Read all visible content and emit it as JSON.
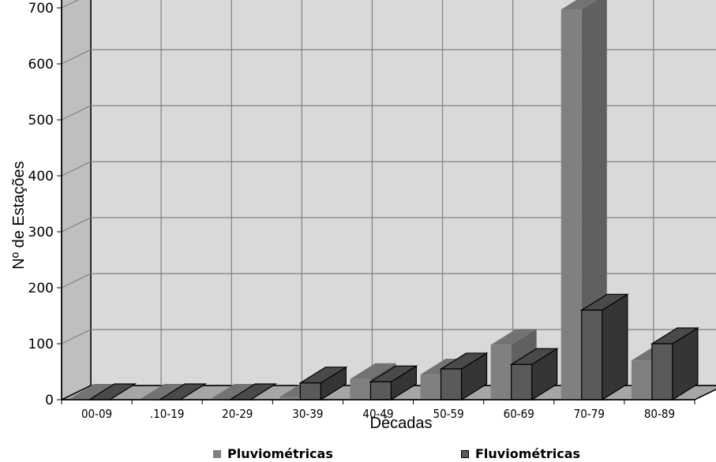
{
  "chart_data": {
    "type": "bar",
    "title": "",
    "xlabel": "Décadas",
    "ylabel": "Nº de Estações",
    "ylim": [
      0,
      800
    ],
    "yticks": [
      0,
      100,
      200,
      300,
      400,
      500,
      600,
      700,
      800
    ],
    "grid": true,
    "legend_position": "bottom",
    "categories": [
      "00-09",
      ".10-19",
      "20-29",
      "30-39",
      "40-49",
      "50-59",
      "60-69",
      "70-79",
      "80-89"
    ],
    "series": [
      {
        "name": "Pluviométricas",
        "values": [
          0,
          0,
          0,
          5,
          37,
          45,
          98,
          697,
          70
        ],
        "color": "#808080"
      },
      {
        "name": "Fluviométricas",
        "values": [
          0,
          0,
          0,
          30,
          32,
          55,
          63,
          160,
          100
        ],
        "color": "#5a5a5a"
      }
    ]
  }
}
